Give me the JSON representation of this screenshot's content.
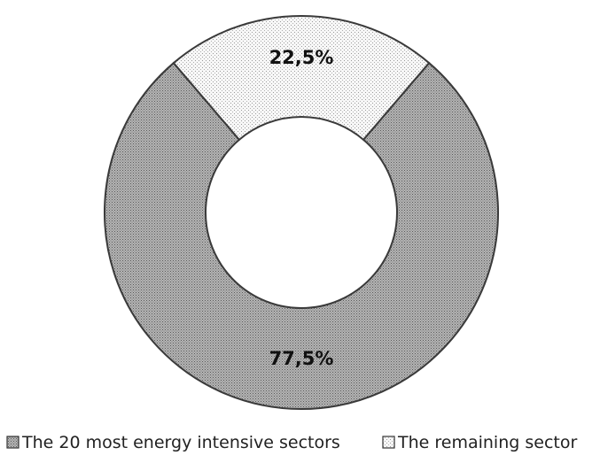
{
  "chart_data": {
    "type": "pie",
    "donut": true,
    "title": "",
    "slices": [
      {
        "label": "The 20 most energy intensive sectors",
        "value": 77.5,
        "display": "77,5%",
        "pattern": "dense-dots",
        "fill": "#a9a9a9"
      },
      {
        "label": "The remaining sector",
        "value": 22.5,
        "display": "22,5%",
        "pattern": "sparse-dots",
        "fill": "#f2f2f2"
      }
    ],
    "legend": {
      "position": "bottom",
      "entries": [
        "The 20 most energy intensive sectors",
        "The remaining sector"
      ]
    }
  }
}
